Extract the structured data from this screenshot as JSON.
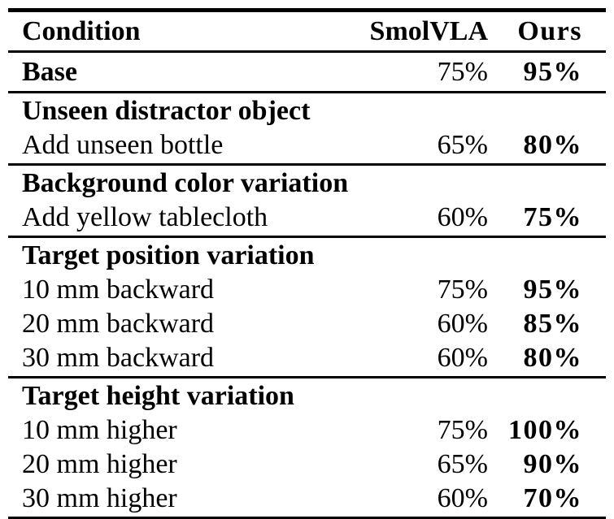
{
  "table": {
    "header": {
      "condition": "Condition",
      "smolvla": "SmolVLA",
      "ours": "Ours"
    },
    "base_row": {
      "condition": "Base",
      "smolvla": "75%",
      "ours": "95%"
    },
    "sections": [
      {
        "title": "Unseen distractor object",
        "rows": [
          {
            "condition": "Add unseen bottle",
            "smolvla": "65%",
            "ours": "80%"
          }
        ]
      },
      {
        "title": "Background color variation",
        "rows": [
          {
            "condition": "Add yellow tablecloth",
            "smolvla": "60%",
            "ours": "75%"
          }
        ]
      },
      {
        "title": "Target position variation",
        "rows": [
          {
            "condition": "10 mm backward",
            "smolvla": "75%",
            "ours": "95%"
          },
          {
            "condition": "20 mm backward",
            "smolvla": "60%",
            "ours": "85%"
          },
          {
            "condition": "30 mm backward",
            "smolvla": "60%",
            "ours": "80%"
          }
        ]
      },
      {
        "title": "Target height variation",
        "rows": [
          {
            "condition": "10 mm higher",
            "smolvla": "75%",
            "ours": "100%"
          },
          {
            "condition": "20 mm higher",
            "smolvla": "65%",
            "ours": "90%"
          },
          {
            "condition": "30 mm higher",
            "smolvla": "60%",
            "ours": "70%"
          }
        ]
      }
    ]
  },
  "chart_data": {
    "type": "table",
    "columns": [
      "Condition",
      "SmolVLA",
      "Ours"
    ],
    "rows": [
      [
        "Base",
        "75%",
        "95%"
      ],
      [
        "Unseen distractor object",
        "",
        ""
      ],
      [
        "Add unseen bottle",
        "65%",
        "80%"
      ],
      [
        "Background color variation",
        "",
        ""
      ],
      [
        "Add yellow tablecloth",
        "60%",
        "75%"
      ],
      [
        "Target position variation",
        "",
        ""
      ],
      [
        "10 mm backward",
        "75%",
        "95%"
      ],
      [
        "20 mm backward",
        "60%",
        "85%"
      ],
      [
        "30 mm backward",
        "60%",
        "80%"
      ],
      [
        "Target height variation",
        "",
        ""
      ],
      [
        "10 mm higher",
        "75%",
        "100%"
      ],
      [
        "20 mm higher",
        "65%",
        "90%"
      ],
      [
        "30 mm higher",
        "60%",
        "70%"
      ]
    ]
  },
  "colors": {
    "text": "#000000",
    "background": "#ffffff",
    "rule": "#000000"
  }
}
